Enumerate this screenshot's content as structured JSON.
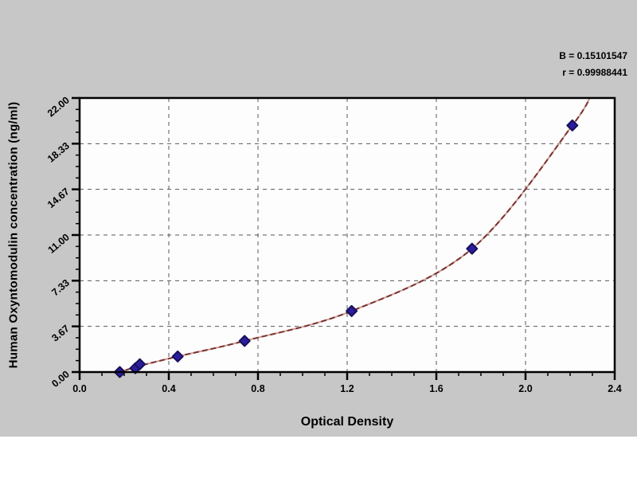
{
  "panel": {
    "bg_color": "#c7c7c7",
    "footer_color": "#ffffff"
  },
  "chart_data": {
    "type": "scatter",
    "xlabel": "Optical Density",
    "ylabel": "Human Oxyntomodulin concentration (ng/ml)",
    "annotation_lines": [
      "B = 0.15101547",
      "r = 0.99988441"
    ],
    "xlim": [
      0,
      2.4
    ],
    "ylim": [
      0,
      22
    ],
    "x_ticks": {
      "values": [
        0,
        0.4,
        0.8,
        1.2,
        1.6,
        2.0,
        2.4
      ],
      "labels": [
        "0.0",
        "0.4",
        "0.8",
        "1.2",
        "1.6",
        "2.0",
        "2.4"
      ],
      "minor_step": 0.1
    },
    "y_ticks": {
      "values": [
        0,
        3.6667,
        7.3333,
        11,
        14.6667,
        18.3333,
        22
      ],
      "labels": [
        "0.00",
        "3.67",
        "7.33",
        "11.00",
        "14.67",
        "18.33",
        "22.00"
      ],
      "minor_per_major": 4
    },
    "grid": "dashed",
    "legend": "none",
    "series": [
      {
        "name": "standard-points",
        "marker": "diamond",
        "points": [
          {
            "x": 0.18,
            "y": 0.0
          },
          {
            "x": 0.25,
            "y": 0.31
          },
          {
            "x": 0.27,
            "y": 0.63
          },
          {
            "x": 0.44,
            "y": 1.25
          },
          {
            "x": 0.74,
            "y": 2.5
          },
          {
            "x": 1.22,
            "y": 4.9
          },
          {
            "x": 1.76,
            "y": 9.9
          },
          {
            "x": 2.21,
            "y": 19.8
          }
        ]
      }
    ],
    "fit_curve": {
      "control_points": [
        [
          0.13,
          -0.15
        ],
        [
          0.18,
          0.0
        ],
        [
          0.26,
          0.45
        ],
        [
          0.44,
          1.25
        ],
        [
          0.74,
          2.5
        ],
        [
          1.22,
          4.9
        ],
        [
          1.76,
          9.9
        ],
        [
          2.21,
          19.8
        ],
        [
          2.3,
          22.6
        ]
      ]
    },
    "colors": {
      "marker_fill": "#2b1d9e",
      "marker_stroke": "#171058",
      "curve": "#7b3030",
      "curve_light": "#c9a092",
      "grid": "#585858",
      "axis": "#000000",
      "plot_bg": "#fdfdfd",
      "text": "#000000"
    }
  }
}
